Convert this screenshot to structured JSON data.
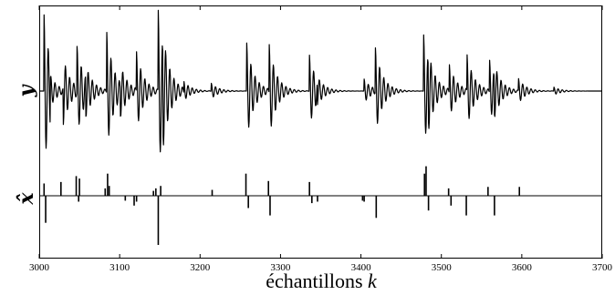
{
  "chart_data": {
    "type": "line",
    "xlabel": "échantillons",
    "xlabel_var": "k",
    "xlim": [
      3000,
      3700
    ],
    "x_ticks": [
      3000,
      3100,
      3200,
      3300,
      3400,
      3500,
      3600,
      3700
    ],
    "grid": false,
    "panels": [
      {
        "ylabel": "y",
        "kind": "oscillatory_signal",
        "bursts": [
          {
            "k": 3006,
            "amp": 0.95,
            "dir": 1
          },
          {
            "k": 3014,
            "amp": 0.55,
            "dir": 1
          },
          {
            "k": 3030,
            "amp": 0.45,
            "dir": -1
          },
          {
            "k": 3047,
            "amp": 0.55,
            "dir": 1
          },
          {
            "k": 3058,
            "amp": 0.45,
            "dir": -1
          },
          {
            "k": 3084,
            "amp": 0.75,
            "dir": 1
          },
          {
            "k": 3101,
            "amp": 0.3,
            "dir": -1
          },
          {
            "k": 3121,
            "amp": 0.5,
            "dir": 1
          },
          {
            "k": 3148,
            "amp": 1.0,
            "dir": 1
          },
          {
            "k": 3154,
            "amp": 0.85,
            "dir": -1
          },
          {
            "k": 3180,
            "amp": 0.15,
            "dir": 1
          },
          {
            "k": 3214,
            "amp": 0.1,
            "dir": 1
          },
          {
            "k": 3258,
            "amp": 0.6,
            "dir": 1
          },
          {
            "k": 3286,
            "amp": 0.6,
            "dir": 1
          },
          {
            "k": 3336,
            "amp": 0.45,
            "dir": 1
          },
          {
            "k": 3346,
            "amp": 0.3,
            "dir": -1
          },
          {
            "k": 3404,
            "amp": 0.15,
            "dir": 1
          },
          {
            "k": 3418,
            "amp": 0.55,
            "dir": 1
          },
          {
            "k": 3478,
            "amp": 0.7,
            "dir": 1
          },
          {
            "k": 3484,
            "amp": 0.6,
            "dir": -1
          },
          {
            "k": 3510,
            "amp": 0.35,
            "dir": 1
          },
          {
            "k": 3532,
            "amp": 0.45,
            "dir": 1
          },
          {
            "k": 3560,
            "amp": 0.4,
            "dir": 1
          },
          {
            "k": 3566,
            "amp": 0.4,
            "dir": -1
          },
          {
            "k": 3596,
            "amp": 0.15,
            "dir": 1
          },
          {
            "k": 3640,
            "amp": 0.05,
            "dir": 1
          }
        ]
      },
      {
        "ylabel": "x̂",
        "kind": "sparse_spikes",
        "spikes": [
          {
            "k": 3006,
            "v": 0.25
          },
          {
            "k": 3008,
            "v": -0.55
          },
          {
            "k": 3027,
            "v": 0.28
          },
          {
            "k": 3046,
            "v": 0.4
          },
          {
            "k": 3049,
            "v": -0.12
          },
          {
            "k": 3050,
            "v": 0.35
          },
          {
            "k": 3082,
            "v": 0.15
          },
          {
            "k": 3085,
            "v": 0.45
          },
          {
            "k": 3087,
            "v": 0.2
          },
          {
            "k": 3107,
            "v": -0.1
          },
          {
            "k": 3118,
            "v": -0.2
          },
          {
            "k": 3121,
            "v": -0.12
          },
          {
            "k": 3142,
            "v": 0.1
          },
          {
            "k": 3145,
            "v": 0.15
          },
          {
            "k": 3148,
            "v": -1.0
          },
          {
            "k": 3151,
            "v": 0.2
          },
          {
            "k": 3215,
            "v": 0.12
          },
          {
            "k": 3257,
            "v": 0.45
          },
          {
            "k": 3260,
            "v": -0.25
          },
          {
            "k": 3285,
            "v": 0.3
          },
          {
            "k": 3287,
            "v": -0.4
          },
          {
            "k": 3336,
            "v": 0.28
          },
          {
            "k": 3339,
            "v": -0.15
          },
          {
            "k": 3346,
            "v": -0.12
          },
          {
            "k": 3402,
            "v": -0.1
          },
          {
            "k": 3404,
            "v": -0.12
          },
          {
            "k": 3419,
            "v": -0.45
          },
          {
            "k": 3479,
            "v": 0.45
          },
          {
            "k": 3481,
            "v": 0.6
          },
          {
            "k": 3484,
            "v": -0.3
          },
          {
            "k": 3509,
            "v": 0.15
          },
          {
            "k": 3512,
            "v": -0.2
          },
          {
            "k": 3531,
            "v": -0.4
          },
          {
            "k": 3558,
            "v": 0.18
          },
          {
            "k": 3566,
            "v": -0.4
          },
          {
            "k": 3597,
            "v": 0.18
          }
        ]
      }
    ]
  }
}
